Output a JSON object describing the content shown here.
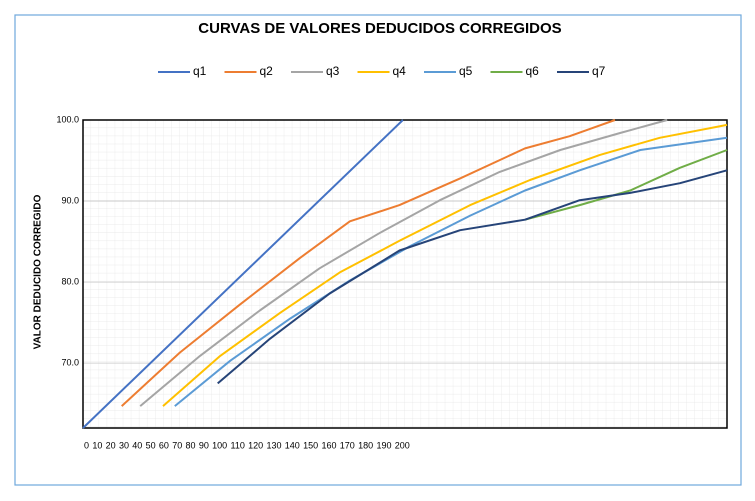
{
  "chart_data": {
    "type": "line",
    "title": "CURVAS DE VALORES DEDUCIDOS CORREGIDOS",
    "ylabel": "VALOR DEDUCIDO CORREGIDO",
    "xlim": [
      62,
      138.5
    ],
    "ylim": [
      62,
      100
    ],
    "xticks": [
      0,
      10,
      20,
      30,
      40,
      50,
      60,
      70,
      80,
      90,
      100,
      110,
      120,
      130,
      140,
      150,
      160,
      170,
      180,
      190,
      200
    ],
    "yticks": [
      {
        "value": 70,
        "label": "70.0"
      },
      {
        "value": 80,
        "label": "80.0"
      },
      {
        "value": 90,
        "label": "90.0"
      },
      {
        "value": 100,
        "label": "100.0"
      }
    ],
    "grid": true,
    "legend": "top",
    "series": [
      {
        "name": "q1",
        "color": "#4472c4",
        "x": [
          62,
          100
        ],
        "values": [
          62,
          100
        ]
      },
      {
        "name": "q2",
        "color": "#ed7d31",
        "x": [
          66.6,
          73.5,
          80.6,
          87.8,
          93.7,
          99.6,
          106.8,
          114.5,
          119.8,
          125.2
        ],
        "values": [
          64.7,
          71.3,
          77.2,
          83.0,
          87.5,
          89.5,
          92.8,
          96.5,
          98.0,
          100
        ]
      },
      {
        "name": "q3",
        "color": "#a5a5a5",
        "x": [
          68.8,
          75.9,
          83.0,
          90.1,
          97.3,
          104.4,
          111.5,
          118.7,
          125.8,
          131.4
        ],
        "values": [
          64.7,
          70.9,
          76.5,
          81.7,
          86.1,
          90.1,
          93.6,
          96.3,
          98.4,
          100
        ]
      },
      {
        "name": "q4",
        "color": "#ffc000",
        "x": [
          71.5,
          78.3,
          85.4,
          92.5,
          99.6,
          108.0,
          115.1,
          123.4,
          130.5,
          138.5
        ],
        "values": [
          64.7,
          70.9,
          76.2,
          81.2,
          85.1,
          89.5,
          92.6,
          95.7,
          97.8,
          99.4
        ]
      },
      {
        "name": "q5",
        "color": "#5b9bd5",
        "x": [
          72.9,
          79.5,
          86.6,
          93.7,
          100.8,
          108.0,
          114.5,
          121.0,
          128.2,
          138.5
        ],
        "values": [
          64.7,
          70.3,
          75.5,
          80.2,
          84.4,
          88.2,
          91.3,
          93.8,
          96.3,
          97.8
        ]
      },
      {
        "name": "q6",
        "color": "#70ad47",
        "x": [
          114.5,
          121.0,
          127.0,
          132.9,
          138.5
        ],
        "values": [
          87.7,
          89.5,
          91.3,
          94.1,
          96.3
        ]
      },
      {
        "name": "q7",
        "color": "#264478",
        "x": [
          78.0,
          84.2,
          91.3,
          99.6,
          106.8,
          114.5,
          121.0,
          127.0,
          132.9,
          138.5
        ],
        "values": [
          67.5,
          73.0,
          78.6,
          83.9,
          86.4,
          87.7,
          90.1,
          91.0,
          92.2,
          93.8
        ]
      }
    ]
  }
}
